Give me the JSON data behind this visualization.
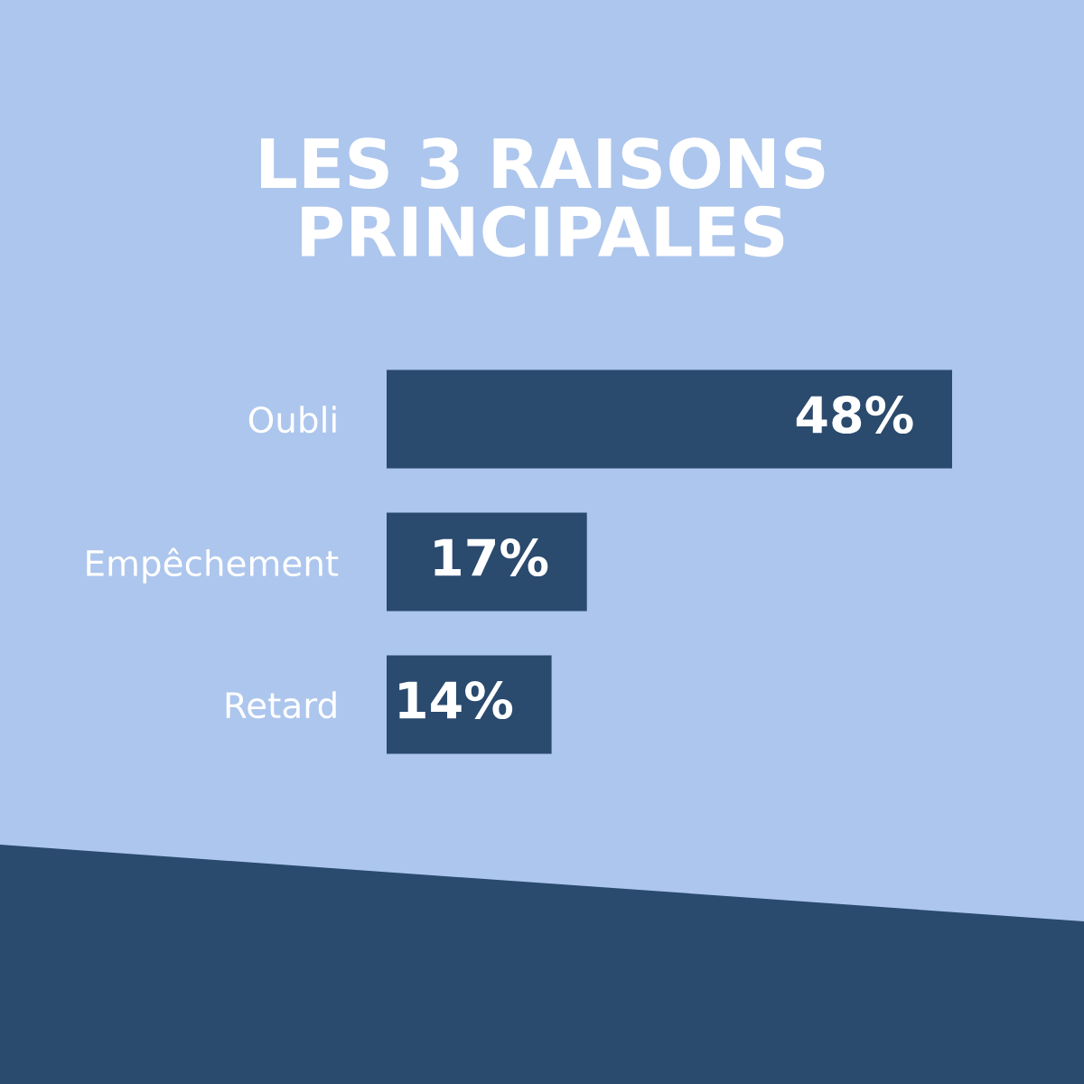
{
  "chart_data": {
    "type": "bar",
    "orientation": "horizontal",
    "title": "LES 3 RAISONS\nPRINCIPALES",
    "categories": [
      "Oubli",
      "Empêchement",
      "Retard"
    ],
    "values": [
      48,
      17,
      14
    ],
    "value_labels": [
      "48%",
      "17%",
      "14%"
    ],
    "color": "#2a4a6e",
    "grid": false
  }
}
